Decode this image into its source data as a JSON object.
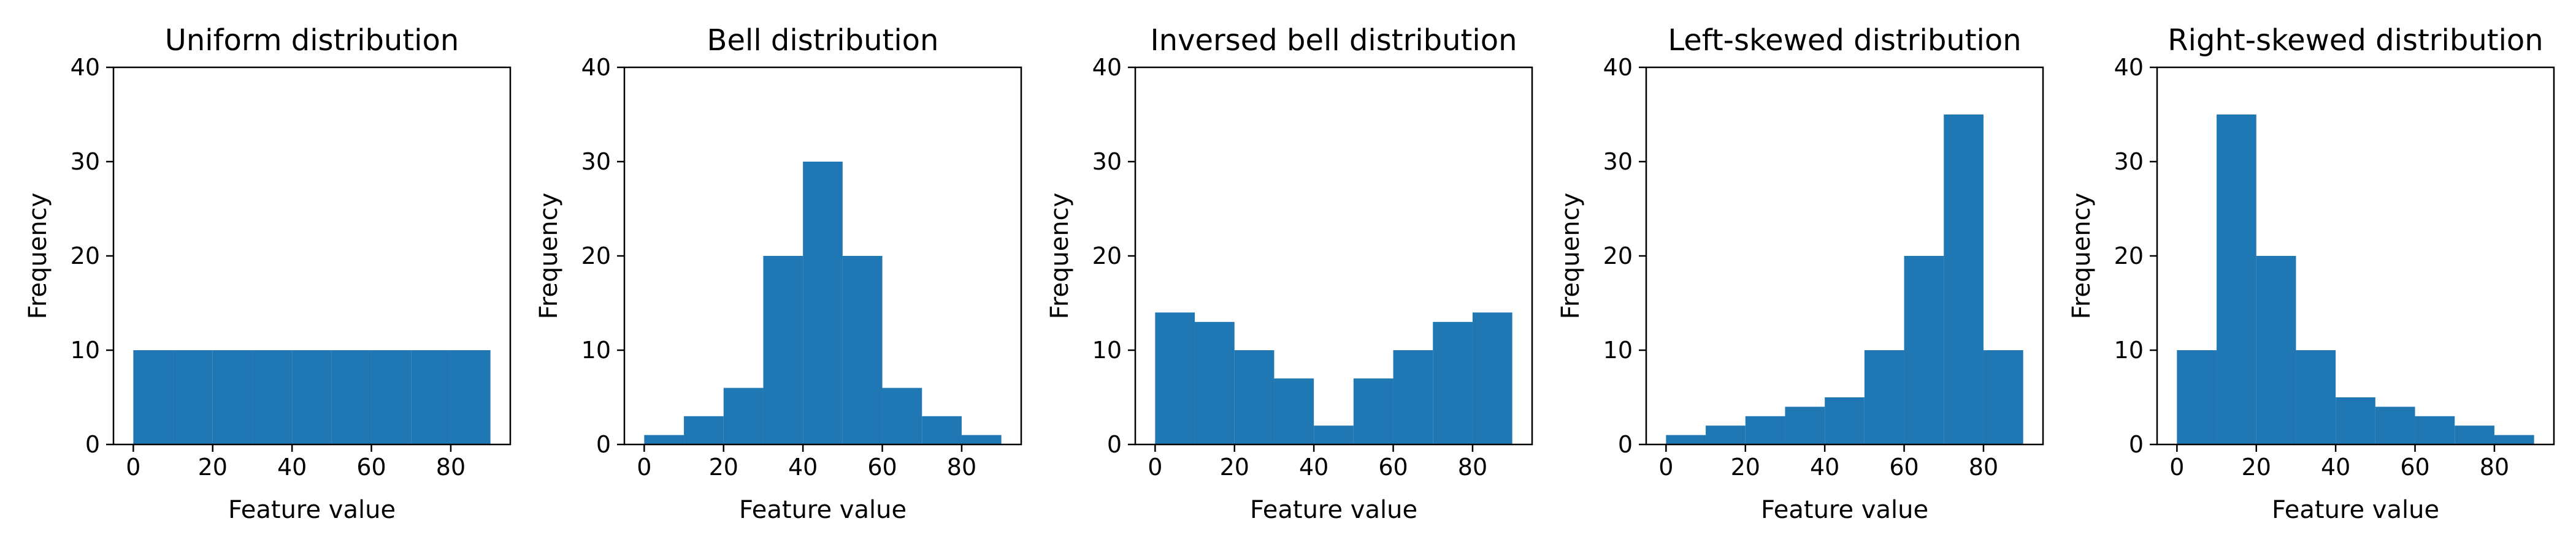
{
  "chart_data": [
    {
      "type": "bar",
      "title": "Uniform distribution",
      "xlabel": "Feature value",
      "ylabel": "Frequency",
      "bin_edges": [
        0,
        10,
        20,
        30,
        40,
        50,
        60,
        70,
        80,
        90
      ],
      "values": [
        10,
        10,
        10,
        10,
        10,
        10,
        10,
        10,
        10
      ],
      "xlim": [
        -5,
        95
      ],
      "ylim": [
        0,
        40
      ],
      "xticks": [
        0,
        20,
        40,
        60,
        80
      ],
      "yticks": [
        0,
        10,
        20,
        30,
        40
      ],
      "grid": false,
      "color": "#1f77b4"
    },
    {
      "type": "bar",
      "title": "Bell distribution",
      "xlabel": "Feature value",
      "ylabel": "Frequency",
      "bin_edges": [
        0,
        10,
        20,
        30,
        40,
        50,
        60,
        70,
        80,
        90
      ],
      "values": [
        1,
        3,
        6,
        20,
        30,
        20,
        6,
        3,
        1
      ],
      "xlim": [
        -5,
        95
      ],
      "ylim": [
        0,
        40
      ],
      "xticks": [
        0,
        20,
        40,
        60,
        80
      ],
      "yticks": [
        0,
        10,
        20,
        30,
        40
      ],
      "grid": false,
      "color": "#1f77b4"
    },
    {
      "type": "bar",
      "title": "Inversed bell distribution",
      "xlabel": "Feature value",
      "ylabel": "Frequency",
      "bin_edges": [
        0,
        10,
        20,
        30,
        40,
        50,
        60,
        70,
        80,
        90
      ],
      "values": [
        14,
        13,
        10,
        7,
        2,
        7,
        10,
        13,
        14
      ],
      "xlim": [
        -5,
        95
      ],
      "ylim": [
        0,
        40
      ],
      "xticks": [
        0,
        20,
        40,
        60,
        80
      ],
      "yticks": [
        0,
        10,
        20,
        30,
        40
      ],
      "grid": false,
      "color": "#1f77b4"
    },
    {
      "type": "bar",
      "title": "Left-skewed distribution",
      "xlabel": "Feature value",
      "ylabel": "Frequency",
      "bin_edges": [
        0,
        10,
        20,
        30,
        40,
        50,
        60,
        70,
        80,
        90
      ],
      "values": [
        1,
        2,
        3,
        4,
        5,
        10,
        20,
        35,
        10
      ],
      "xlim": [
        -5,
        95
      ],
      "ylim": [
        0,
        40
      ],
      "xticks": [
        0,
        20,
        40,
        60,
        80
      ],
      "yticks": [
        0,
        10,
        20,
        30,
        40
      ],
      "grid": false,
      "color": "#1f77b4"
    },
    {
      "type": "bar",
      "title": "Right-skewed distribution",
      "xlabel": "Feature value",
      "ylabel": "Frequency",
      "bin_edges": [
        0,
        10,
        20,
        30,
        40,
        50,
        60,
        70,
        80,
        90
      ],
      "values": [
        10,
        35,
        20,
        10,
        5,
        4,
        3,
        2,
        1
      ],
      "xlim": [
        -5,
        95
      ],
      "ylim": [
        0,
        40
      ],
      "xticks": [
        0,
        20,
        40,
        60,
        80
      ],
      "yticks": [
        0,
        10,
        20,
        30,
        40
      ],
      "grid": false,
      "color": "#1f77b4"
    }
  ]
}
